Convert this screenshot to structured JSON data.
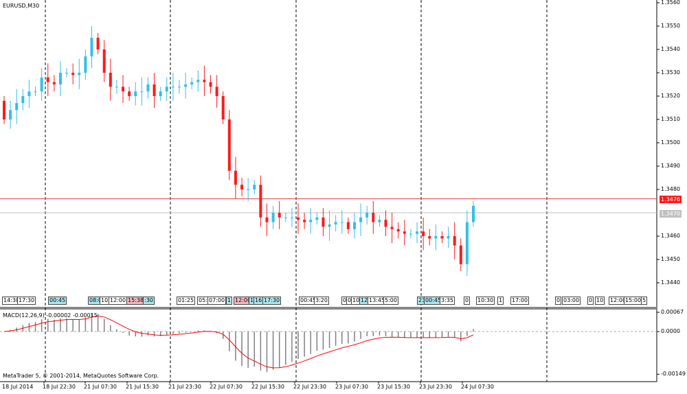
{
  "symbol_label": "EURUSD,M30",
  "indicator_label": "MACD(12,26,9) -0.00002 -0.00015",
  "copyright": "MetaTrader 5, © 2001-2014, MetaQuotes Software Corp.",
  "colors": {
    "bull": "#33bfe8",
    "bear": "#ff1a1a",
    "grid": "#000000",
    "bid_line": "#e63b3b",
    "ask_line": "#c0c0c0",
    "macd_hist": "#808080",
    "signal": "#ff0000"
  },
  "price_labels": {
    "bid": "1.3476",
    "ask": "1.3470"
  },
  "events": [
    {
      "t": "14:30",
      "c": "white"
    },
    {
      "t": "17:30",
      "c": "white"
    },
    {
      "t": "00:45",
      "c": "cyan"
    },
    {
      "t": "08:0",
      "c": "cyan"
    },
    {
      "t": "10",
      "c": "white"
    },
    {
      "t": "12:00",
      "c": "white"
    },
    {
      "t": "15:38",
      "c": "pink"
    },
    {
      "t": ":30",
      "c": "cyan"
    },
    {
      "t": "01:25",
      "c": "white"
    },
    {
      "t": "05:",
      "c": "white"
    },
    {
      "t": "07:00",
      "c": "white"
    },
    {
      "t": "1",
      "c": "cyan"
    },
    {
      "t": "12:00",
      "c": "pink"
    },
    {
      "t": "1",
      "c": "cyan"
    },
    {
      "t": "16",
      "c": "cyan"
    },
    {
      "t": "17:30",
      "c": "cyan"
    },
    {
      "t": "00:45",
      "c": "white"
    },
    {
      "t": "3:20",
      "c": "white"
    },
    {
      "t": "0",
      "c": "white"
    },
    {
      "t": "0",
      "c": "white"
    },
    {
      "t": "10",
      "c": "white"
    },
    {
      "t": "12",
      "c": "cyan"
    },
    {
      "t": "13:45",
      "c": "white"
    },
    {
      "t": "5:00",
      "c": "white"
    },
    {
      "t": "23",
      "c": "cyan"
    },
    {
      "t": "00:45",
      "c": "cyan"
    },
    {
      "t": "3:35",
      "c": "white"
    },
    {
      "t": "0",
      "c": "white"
    },
    {
      "t": "10:30",
      "c": "white"
    },
    {
      "t": "1",
      "c": "white"
    },
    {
      "t": "17:00",
      "c": "white"
    },
    {
      "t": "0",
      "c": "white"
    },
    {
      "t": "03:00",
      "c": "white"
    },
    {
      "t": "0",
      "c": "white"
    },
    {
      "t": "10",
      "c": "white"
    },
    {
      "t": "12:00",
      "c": "white"
    },
    {
      "t": "15:00",
      "c": "white"
    },
    {
      "t": "5",
      "c": "white"
    }
  ],
  "chart_data": [
    {
      "type": "candlestick",
      "title": "EURUSD,M30",
      "x_tick_labels": [
        "18 Jul 2014",
        "18 Jul 22:30",
        "21 Jul 07:30",
        "21 Jul 15:30",
        "21 Jul 23:30",
        "22 Jul 07:30",
        "22 Jul 15:30",
        "22 Jul 23:30",
        "23 Jul 07:30",
        "23 Jul 15:30",
        "23 Jul 23:30",
        "24 Jul 07:30"
      ],
      "y_tick_labels": [
        "1.3560",
        "1.3550",
        "1.3540",
        "1.3530",
        "1.3520",
        "1.3510",
        "1.3500",
        "1.3490",
        "1.3480",
        "1.3460",
        "1.3450",
        "1.3440"
      ],
      "ylim": [
        1.3437,
        1.3561
      ],
      "bid": 1.3476,
      "ask": 1.347,
      "grid": "vertical dashed",
      "closes": [
        1.351,
        1.3514,
        1.3517,
        1.352,
        1.3522,
        1.3522,
        1.3528,
        1.3526,
        1.3525,
        1.353,
        1.353,
        1.3529,
        1.353,
        1.3537,
        1.3545,
        1.354,
        1.353,
        1.3524,
        1.3524,
        1.3522,
        1.352,
        1.3522,
        1.3522,
        1.3525,
        1.352,
        1.3522,
        1.3524,
        1.3524,
        1.3524,
        1.3525,
        1.3526,
        1.3527,
        1.3526,
        1.3524,
        1.352,
        1.351,
        1.3488,
        1.3482,
        1.348,
        1.348,
        1.3482,
        1.3468,
        1.3466,
        1.347,
        1.3468,
        1.3468,
        1.3468,
        1.3467,
        1.3466,
        1.3467,
        1.3468,
        1.3464,
        1.3465,
        1.3466,
        1.3466,
        1.3463,
        1.3466,
        1.3468,
        1.347,
        1.3466,
        1.3467,
        1.3464,
        1.3463,
        1.3462,
        1.3461,
        1.3461,
        1.3462,
        1.346,
        1.3459,
        1.346,
        1.3459,
        1.346,
        1.3456,
        1.3448,
        1.3466,
        1.3473
      ]
    },
    {
      "type": "bar+line",
      "title": "MACD(12,26,9)",
      "values_shown": {
        "macd": -2e-05,
        "signal": -0.00015
      },
      "y_tick_labels": [
        "0.00067",
        "0.0000",
        "-0.00149"
      ],
      "ylim": [
        -0.00149,
        0.00067
      ]
    }
  ]
}
